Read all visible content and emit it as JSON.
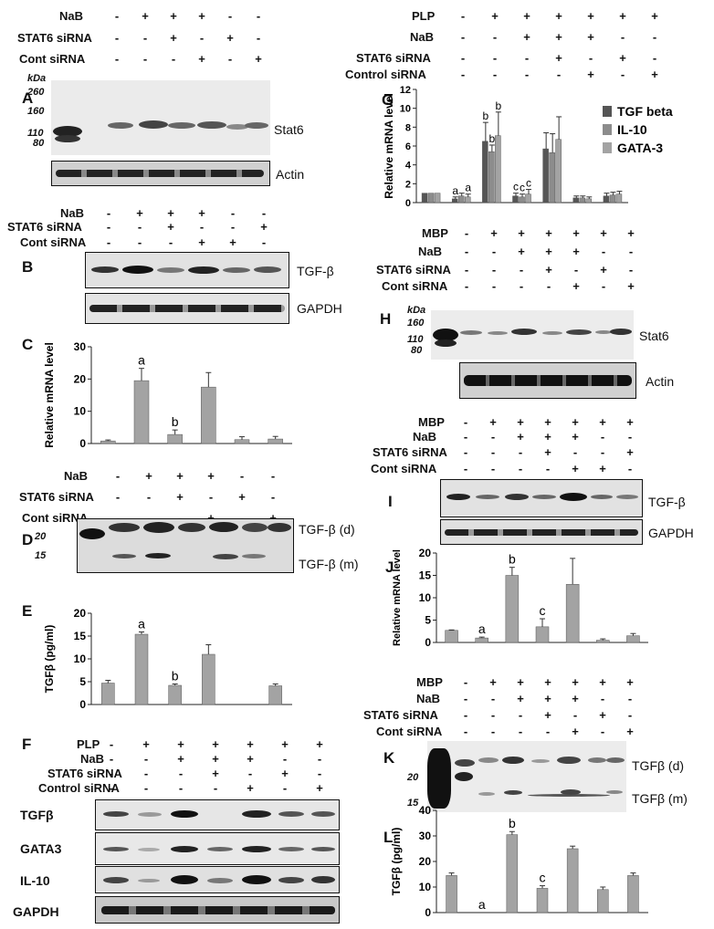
{
  "colors": {
    "bar": "#a3a3a3",
    "tgf": "#555555",
    "il10": "#8c8c8c",
    "gata3": "#a3a3a3",
    "band": "#1a1a1a"
  },
  "panelA": {
    "letter": "A",
    "rows": [
      {
        "label": "NaB",
        "signs": [
          "-",
          "+",
          "+",
          "+",
          "-",
          "-"
        ]
      },
      {
        "label": "STAT6 siRNA",
        "signs": [
          "-",
          "-",
          "+",
          "-",
          "+",
          "-"
        ]
      },
      {
        "label": "Cont siRNA",
        "signs": [
          "-",
          "-",
          "-",
          "+",
          "-",
          "+"
        ]
      }
    ],
    "kda": "kDa",
    "markers": [
      "260",
      "160",
      "110",
      "80"
    ],
    "blot_labels": [
      "Stat6",
      "Actin"
    ]
  },
  "panelB": {
    "letter": "B",
    "rows": [
      {
        "label": "NaB",
        "signs": [
          "-",
          "+",
          "+",
          "+",
          "-",
          "-"
        ]
      },
      {
        "label": "STAT6 siRNA",
        "signs": [
          "-",
          "-",
          "+",
          "-",
          "-",
          "+"
        ]
      },
      {
        "label": "Cont siRNA",
        "signs": [
          "-",
          "-",
          "-",
          "+",
          "+",
          "-"
        ]
      }
    ],
    "blot_labels": [
      "TGF-β",
      "GAPDH"
    ]
  },
  "panelC": {
    "letter": "C"
  },
  "panelD": {
    "letter": "D",
    "rows": [
      {
        "label": "NaB",
        "signs": [
          "-",
          "+",
          "+",
          "+",
          "-",
          "-"
        ]
      },
      {
        "label": "STAT6 siRNA",
        "signs": [
          "-",
          "-",
          "+",
          "-",
          "+",
          "-"
        ]
      },
      {
        "label": "Cont siRNA",
        "signs": [
          "-",
          "-",
          "-",
          "+",
          "-",
          "+"
        ]
      }
    ],
    "markers": [
      "20",
      "15"
    ],
    "blot_labels": [
      "TGF-β (d)",
      "TGF-β (m)"
    ]
  },
  "panelE": {
    "letter": "E"
  },
  "panelF": {
    "letter": "F",
    "rows": [
      {
        "label": "PLP",
        "signs": [
          "-",
          "+",
          "+",
          "+",
          "+",
          "+",
          "+"
        ]
      },
      {
        "label": "NaB",
        "signs": [
          "-",
          "-",
          "+",
          "+",
          "+",
          "-",
          "-"
        ]
      },
      {
        "label": "STAT6 siRNA",
        "signs": [
          "-",
          "-",
          "-",
          "+",
          "-",
          "+",
          "-"
        ]
      },
      {
        "label": "Control siRNA",
        "signs": [
          "-",
          "-",
          "-",
          "-",
          "+",
          "-",
          "+"
        ]
      }
    ],
    "blot_labels": [
      "TGFβ",
      "GATA3",
      "IL-10",
      "GAPDH"
    ]
  },
  "panelG": {
    "letter": "G",
    "rows": [
      {
        "label": "PLP",
        "signs": [
          "-",
          "+",
          "+",
          "+",
          "+",
          "+",
          "+"
        ]
      },
      {
        "label": "NaB",
        "signs": [
          "-",
          "-",
          "+",
          "+",
          "+",
          "-",
          "-"
        ]
      },
      {
        "label": "STAT6 siRNA",
        "signs": [
          "-",
          "-",
          "-",
          "+",
          "-",
          "+",
          "-"
        ]
      },
      {
        "label": "Control siRNA",
        "signs": [
          "-",
          "-",
          "-",
          "-",
          "+",
          "-",
          "+"
        ]
      }
    ]
  },
  "panelH": {
    "letter": "H",
    "rows": [
      {
        "label": "MBP",
        "signs": [
          "-",
          "+",
          "+",
          "+",
          "+",
          "+",
          "+"
        ]
      },
      {
        "label": "NaB",
        "signs": [
          "-",
          "-",
          "+",
          "+",
          "+",
          "-",
          "-"
        ]
      },
      {
        "label": "STAT6 siRNA",
        "signs": [
          "-",
          "-",
          "-",
          "+",
          "-",
          "+",
          "-"
        ]
      },
      {
        "label": "Cont siRNA",
        "signs": [
          "-",
          "-",
          "-",
          "-",
          "+",
          "-",
          "+"
        ]
      }
    ],
    "kda": "kDa",
    "markers": [
      "160",
      "110",
      "80"
    ],
    "blot_labels": [
      "Stat6",
      "Actin"
    ]
  },
  "panelI": {
    "letter": "I",
    "rows": [
      {
        "label": "MBP",
        "signs": [
          "-",
          "+",
          "+",
          "+",
          "+",
          "+",
          "+"
        ]
      },
      {
        "label": "NaB",
        "signs": [
          "-",
          "-",
          "+",
          "+",
          "+",
          "-",
          "-"
        ]
      },
      {
        "label": "STAT6 siRNA",
        "signs": [
          "-",
          "-",
          "-",
          "+",
          "-",
          "-",
          "+"
        ]
      },
      {
        "label": "Cont siRNA",
        "signs": [
          "-",
          "-",
          "-",
          "-",
          "+",
          "+",
          "-"
        ]
      }
    ],
    "blot_labels": [
      "TGF-β",
      "GAPDH"
    ]
  },
  "panelJ": {
    "letter": "J"
  },
  "panelK": {
    "letter": "K",
    "rows": [
      {
        "label": "MBP",
        "signs": [
          "-",
          "+",
          "+",
          "+",
          "+",
          "+",
          "+"
        ]
      },
      {
        "label": "NaB",
        "signs": [
          "-",
          "-",
          "+",
          "+",
          "+",
          "-",
          "-"
        ]
      },
      {
        "label": "STAT6 siRNA",
        "signs": [
          "-",
          "-",
          "-",
          "+",
          "-",
          "+",
          "-"
        ]
      },
      {
        "label": "Cont siRNA",
        "signs": [
          "-",
          "-",
          "-",
          "-",
          "+",
          "-",
          "+"
        ]
      }
    ],
    "markers": [
      "20",
      "15"
    ],
    "blot_labels": [
      "TGFβ (d)",
      "TGFβ (m)"
    ]
  },
  "panelL": {
    "letter": "L"
  },
  "chart_data": [
    {
      "id": "C",
      "type": "bar",
      "ylabel": "Relative mRNA level",
      "ylim": [
        0,
        30
      ],
      "yticks": [
        0,
        10,
        20,
        30
      ],
      "values": [
        0.8,
        19.5,
        2.8,
        17.5,
        1.2,
        1.4
      ],
      "errors": [
        0.3,
        3.8,
        1.4,
        4.5,
        0.9,
        0.8
      ],
      "annotations": [
        "",
        "a",
        "b",
        "",
        "",
        ""
      ]
    },
    {
      "id": "E",
      "type": "bar",
      "ylabel": "TGFβ (pg/ml)",
      "ylim": [
        0,
        20
      ],
      "yticks": [
        0,
        5,
        10,
        15,
        20
      ],
      "values": [
        4.7,
        15.4,
        4.2,
        11.0,
        0,
        4.1
      ],
      "errors": [
        0.6,
        0.5,
        0.3,
        2.1,
        0,
        0.4
      ],
      "annotations": [
        "",
        "a",
        "b",
        "",
        "",
        ""
      ]
    },
    {
      "id": "G",
      "type": "bar",
      "ylabel": "Relative mRNA level",
      "ylim": [
        0,
        12
      ],
      "yticks": [
        0,
        2,
        4,
        6,
        8,
        10,
        12
      ],
      "legend": "right",
      "series": [
        {
          "name": "TGF beta",
          "values": [
            1.0,
            0.4,
            6.5,
            0.7,
            5.7,
            0.5,
            0.7
          ],
          "errors": [
            0,
            0.2,
            2.0,
            0.3,
            1.7,
            0.2,
            0.3
          ]
        },
        {
          "name": "IL-10",
          "values": [
            1.0,
            0.7,
            5.4,
            0.6,
            5.3,
            0.5,
            0.8
          ],
          "errors": [
            0,
            0.3,
            0.7,
            0.3,
            2.0,
            0.2,
            0.3
          ]
        },
        {
          "name": "GATA-3",
          "values": [
            1.0,
            0.6,
            7.1,
            0.9,
            6.7,
            0.4,
            0.9
          ],
          "errors": [
            0,
            0.3,
            2.5,
            0.5,
            2.4,
            0.2,
            0.3
          ]
        }
      ],
      "annotations": [
        {
          "group": 1,
          "text": "a",
          "series": 0
        },
        {
          "group": 1,
          "text": "a",
          "series": 2
        },
        {
          "group": 2,
          "text": "b",
          "series": 0
        },
        {
          "group": 2,
          "text": "b",
          "series": 1
        },
        {
          "group": 2,
          "text": "b",
          "series": 2
        },
        {
          "group": 3,
          "text": "c",
          "series": 0
        },
        {
          "group": 3,
          "text": "c",
          "series": 1
        },
        {
          "group": 3,
          "text": "c",
          "series": 2
        }
      ]
    },
    {
      "id": "J",
      "type": "bar",
      "ylabel": "Relative mRNA level",
      "ylim": [
        0,
        20
      ],
      "yticks": [
        0,
        5,
        10,
        15,
        20
      ],
      "values": [
        2.7,
        1.0,
        15.0,
        3.5,
        13.0,
        0.5,
        1.5
      ],
      "errors": [
        0.1,
        0.2,
        1.8,
        1.8,
        5.8,
        0.3,
        0.5
      ],
      "annotations": [
        "",
        "a",
        "b",
        "c",
        "",
        "",
        ""
      ]
    },
    {
      "id": "L",
      "type": "bar",
      "ylabel": "TGFβ (pg/ml)",
      "ylim": [
        0,
        40
      ],
      "yticks": [
        0,
        10,
        20,
        30,
        40
      ],
      "values": [
        14.5,
        0,
        30.5,
        9.5,
        25.0,
        9.0,
        14.5
      ],
      "errors": [
        1.0,
        0,
        1.2,
        1.0,
        1.0,
        1.0,
        1.0
      ],
      "annotations": [
        "",
        "a",
        "b",
        "c",
        "",
        "",
        ""
      ]
    }
  ]
}
